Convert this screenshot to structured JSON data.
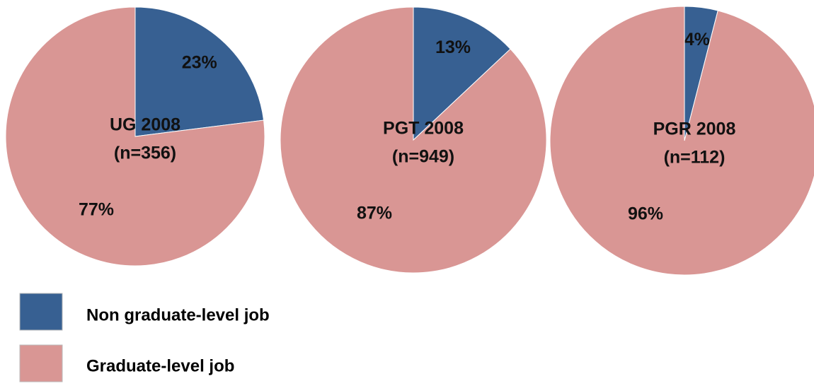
{
  "chart_data": [
    {
      "type": "pie",
      "title": "UG 2008",
      "subtitle": "(n=356)",
      "values": [
        23,
        77
      ],
      "value_labels": [
        "23%",
        "77%"
      ]
    },
    {
      "type": "pie",
      "title": "PGT 2008",
      "subtitle": "(n=949)",
      "values": [
        13,
        87
      ],
      "value_labels": [
        "13%",
        "87%"
      ]
    },
    {
      "type": "pie",
      "title": "PGR 2008",
      "subtitle": "(n=112)",
      "values": [
        4,
        96
      ],
      "value_labels": [
        "4%",
        "96%"
      ]
    }
  ],
  "legend": {
    "categories": [
      "Non graduate-level job",
      "Graduate-level job"
    ],
    "colors": [
      "#376092",
      "#d99694"
    ]
  }
}
